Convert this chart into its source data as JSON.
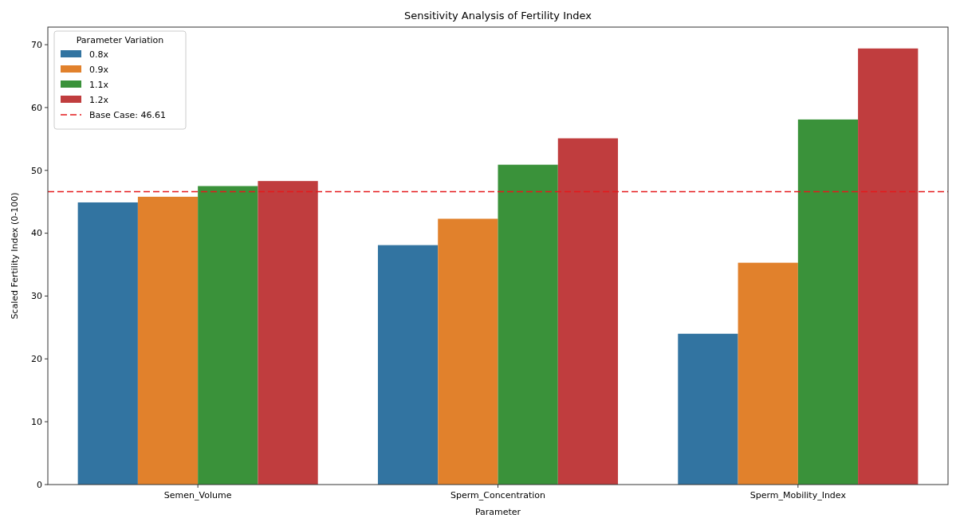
{
  "chart_data": {
    "type": "bar",
    "title": "Sensitivity Analysis of Fertility Index",
    "xlabel": "Parameter",
    "ylabel": "Scaled Fertility Index (0-100)",
    "legend_title": "Parameter Variation",
    "categories": [
      "Semen_Volume",
      "Sperm_Concentration",
      "Sperm_Mobility_Index"
    ],
    "series": [
      {
        "name": "0.8x",
        "color": "#3274a1",
        "values": [
          44.9,
          38.1,
          24.0
        ]
      },
      {
        "name": "0.9x",
        "color": "#e1812c",
        "values": [
          45.8,
          42.3,
          35.3
        ]
      },
      {
        "name": "1.1x",
        "color": "#3a923a",
        "values": [
          47.5,
          50.9,
          58.1
        ]
      },
      {
        "name": "1.2x",
        "color": "#c03d3e",
        "values": [
          48.3,
          55.1,
          69.4
        ]
      }
    ],
    "ref_lines": [
      {
        "axis": "y",
        "value": 46.61,
        "label": "Base Case: 46.61",
        "color": "#e41a1c",
        "line_style": "dashed"
      }
    ],
    "ylim": [
      0,
      72.8
    ],
    "yticks": [
      0,
      10,
      20,
      30,
      40,
      50,
      60,
      70
    ],
    "grid": false,
    "legend": "top left"
  }
}
